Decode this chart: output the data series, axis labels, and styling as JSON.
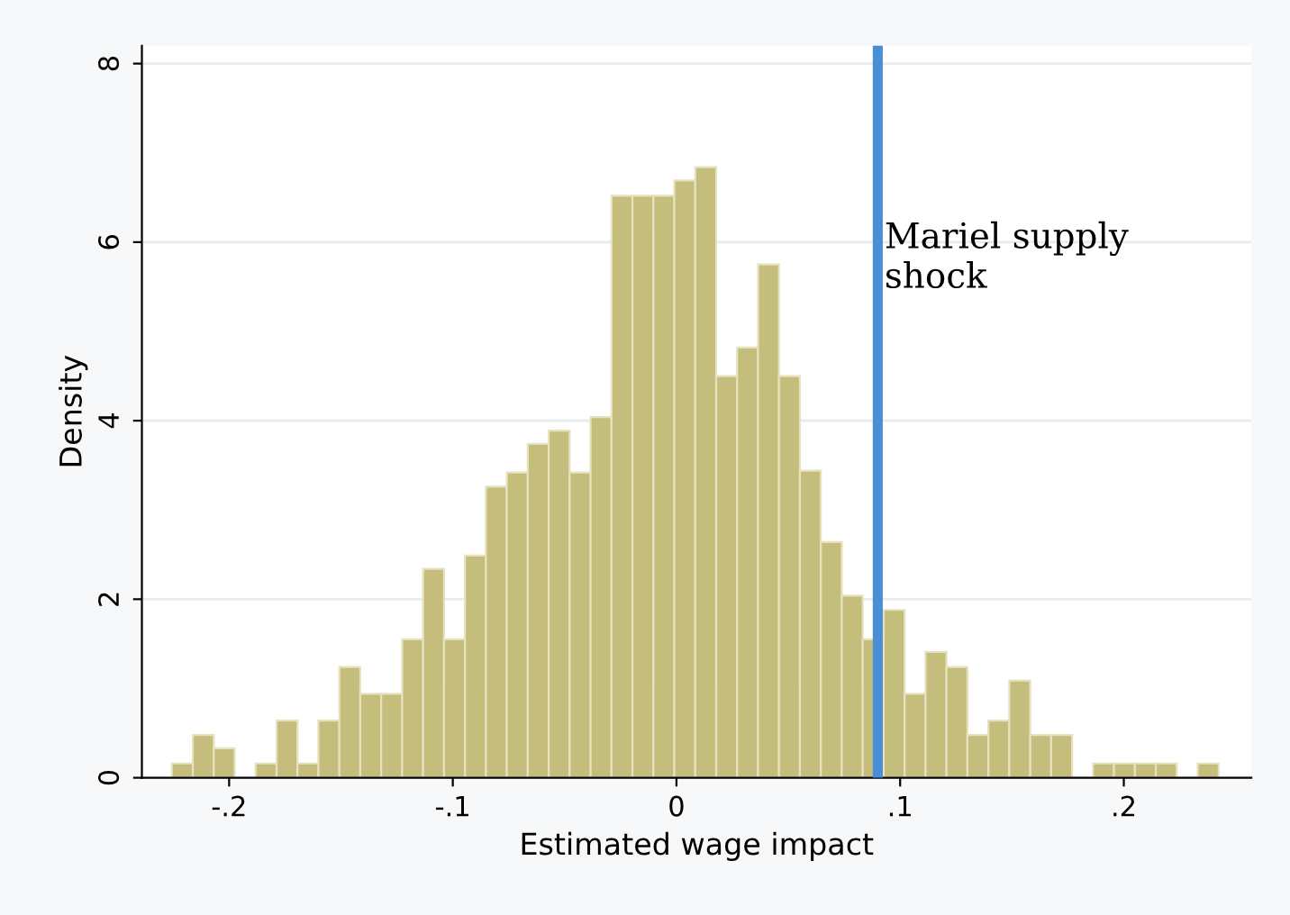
{
  "chart_data": {
    "type": "histogram",
    "xlabel": "Estimated wage impact",
    "ylabel": "Density",
    "bins": [
      -0.2256,
      -0.21624,
      -0.20688,
      -0.19752,
      -0.18816,
      -0.1788,
      -0.16944,
      -0.16008,
      -0.15072,
      -0.14136,
      -0.132,
      -0.12264,
      -0.11328,
      -0.10392,
      -0.09456,
      -0.0852,
      -0.07584,
      -0.06648,
      -0.05712,
      -0.04776,
      -0.0384,
      -0.02904,
      -0.01968,
      -0.01032,
      -0.00096,
      0.0084,
      0.01776,
      0.02712,
      0.03648,
      0.04584,
      0.0552,
      0.06456,
      0.07392,
      0.08328,
      0.09264,
      0.102,
      0.11136,
      0.12072,
      0.13008,
      0.13944,
      0.1488,
      0.15816,
      0.16752,
      0.17688,
      0.18624,
      0.1956,
      0.20496,
      0.21432,
      0.22368,
      0.23304,
      0.2424
    ],
    "values": [
      0.16,
      0.48,
      0.33,
      0,
      0.16,
      0.64,
      0.16,
      0.64,
      1.24,
      0.94,
      0.94,
      1.55,
      2.34,
      1.55,
      2.49,
      3.26,
      3.42,
      3.74,
      3.89,
      3.42,
      4.04,
      6.52,
      6.52,
      6.52,
      6.69,
      6.84,
      4.5,
      4.82,
      5.75,
      4.5,
      3.44,
      2.64,
      2.04,
      1.55,
      1.88,
      0.94,
      1.41,
      1.24,
      0.48,
      0.64,
      1.09,
      0.48,
      0.48,
      0,
      0.16,
      0.16,
      0.16,
      0.16,
      0,
      0.16
    ],
    "color": "#c4bd7c",
    "xlim": [
      -0.239,
      0.257
    ],
    "xticks": [
      {
        "value": -0.2,
        "label": "-.2"
      },
      {
        "value": -0.1,
        "label": "-.1"
      },
      0,
      {
        "value": 0.1,
        "label": ".1"
      },
      {
        "value": 0.2,
        "label": ".2"
      }
    ],
    "ylim": [
      0,
      8.2
    ],
    "yticks": [
      0,
      2,
      4,
      6,
      8
    ],
    "grid": "y",
    "ref_lines": [
      {
        "axis": "x",
        "value": 0.09,
        "label": "Mariel supply\nshock",
        "color": "#4a8fd4"
      }
    ]
  }
}
